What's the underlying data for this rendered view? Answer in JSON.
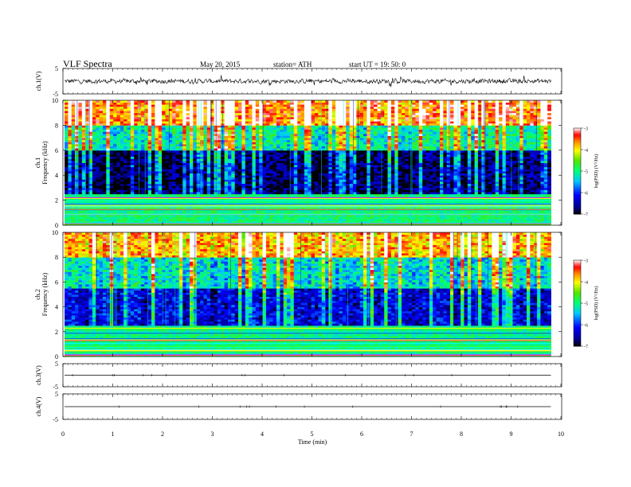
{
  "header": {
    "title": "VLF  Spectra",
    "date": "May 20, 2015",
    "station": "station= ATH",
    "start": "start  UT  =    19: 50: 0"
  },
  "colorbar": {
    "label": "log(PSD) (V²/Hz)",
    "ticks": [
      "-3",
      "-4",
      "-5",
      "-6",
      "-7"
    ],
    "colors": [
      "#ffffff",
      "#ff0000",
      "#ffff00",
      "#00ff00",
      "#00ffff",
      "#0000ff",
      "#000000"
    ]
  },
  "chart_data": [
    {
      "type": "line",
      "name": "ch.1",
      "ylabel": "ch.1(V)",
      "ylim": [
        -5,
        5
      ],
      "yticks": [
        "5",
        "-5"
      ],
      "description_values": "dense noisy waveform oscillating roughly between -1.5 and 1.5 V with spikes",
      "xlim": [
        0,
        9.8
      ]
    },
    {
      "type": "heatmap",
      "name": "ch.1",
      "ylabel": "ch.1",
      "ylabel2": "Frequency  (kHz)",
      "ylim": [
        0,
        10
      ],
      "yticks": [
        "0",
        "2",
        "4",
        "6",
        "8",
        "10"
      ],
      "xlim": [
        0,
        9.8
      ],
      "z_range": [
        -7,
        -3
      ],
      "bands": [
        {
          "freq": [
            0,
            2.5
          ],
          "level": -5.0,
          "note": "horizontal lines"
        },
        {
          "freq": [
            2.5,
            6
          ],
          "level": -6.8
        },
        {
          "freq": [
            6,
            8
          ],
          "level": -5.2
        },
        {
          "freq": [
            8,
            10
          ],
          "level": -3.6
        }
      ]
    },
    {
      "type": "heatmap",
      "name": "ch.2",
      "ylabel": "ch.2",
      "ylabel2": "Frequency  (kHz)",
      "ylim": [
        0,
        10
      ],
      "yticks": [
        "0",
        "2",
        "4",
        "6",
        "8",
        "10"
      ],
      "xlim": [
        0,
        9.8
      ],
      "z_range": [
        -7,
        -3
      ],
      "bands": [
        {
          "freq": [
            0,
            2.5
          ],
          "level": -5.0,
          "note": "horizontal lines"
        },
        {
          "freq": [
            2.5,
            5.5
          ],
          "level": -6.3
        },
        {
          "freq": [
            5.5,
            8
          ],
          "level": -5.3
        },
        {
          "freq": [
            8,
            10
          ],
          "level": -3.8
        }
      ]
    },
    {
      "type": "line",
      "name": "ch.3",
      "ylabel": "ch.3(V)",
      "ylim": [
        -5,
        5
      ],
      "yticks": [
        "5",
        "-5"
      ],
      "values_constant": 0,
      "xlim": [
        0,
        9.8
      ]
    },
    {
      "type": "line",
      "name": "ch.4",
      "ylabel": "ch.4(V)",
      "ylim": [
        -5,
        5
      ],
      "yticks": [
        "5",
        "-5"
      ],
      "values_constant": 0,
      "xlim": [
        0,
        9.8
      ]
    }
  ],
  "xaxis": {
    "label": "Time  (min)",
    "ticks": [
      "0",
      "1",
      "2",
      "3",
      "4",
      "5",
      "6",
      "7",
      "8",
      "9",
      "10"
    ],
    "xlim": [
      0,
      10
    ]
  }
}
